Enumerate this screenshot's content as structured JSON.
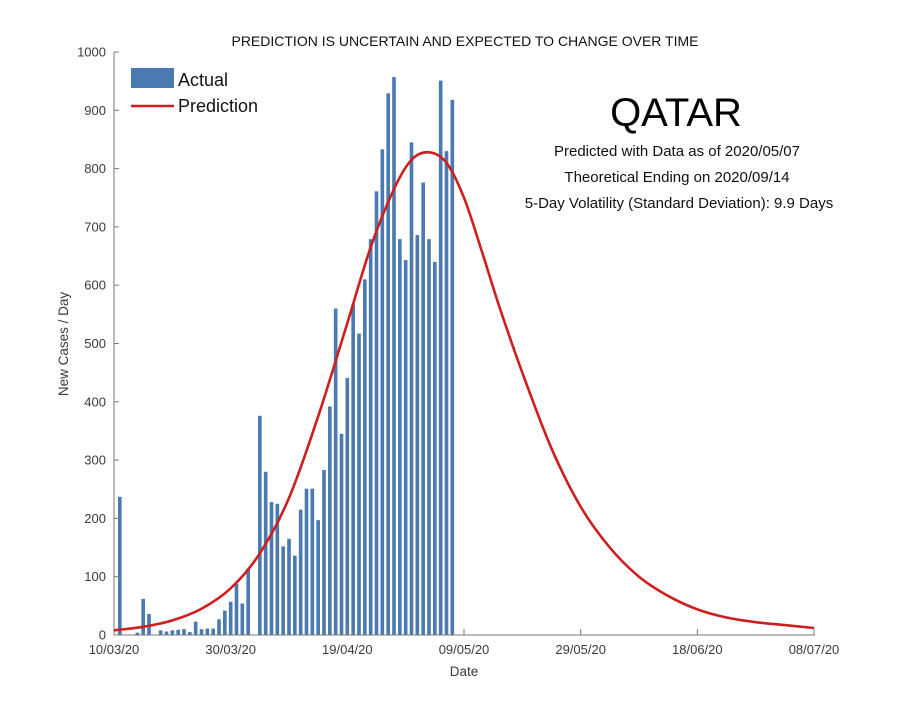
{
  "chart_data": {
    "type": "bar",
    "title": "PREDICTION IS UNCERTAIN AND EXPECTED TO CHANGE OVER TIME",
    "xlabel": "Date",
    "ylabel": "New Cases / Day",
    "ylim": [
      0,
      1000
    ],
    "xlim_days": [
      0,
      120
    ],
    "x_start_date": "10/03/20",
    "grid": false,
    "legend_position": "top-left",
    "x_ticks": [
      {
        "day": 0,
        "label": "10/03/20"
      },
      {
        "day": 20,
        "label": "30/03/20"
      },
      {
        "day": 40,
        "label": "19/04/20"
      },
      {
        "day": 60,
        "label": "09/05/20"
      },
      {
        "day": 80,
        "label": "29/05/20"
      },
      {
        "day": 100,
        "label": "18/06/20"
      },
      {
        "day": 120,
        "label": "08/07/20"
      }
    ],
    "y_ticks": [
      0,
      100,
      200,
      300,
      400,
      500,
      600,
      700,
      800,
      900,
      1000
    ],
    "series": [
      {
        "name": "Actual",
        "type": "bar",
        "color": "#4a7ab0",
        "day_offset": 1,
        "values": [
          237,
          0,
          0,
          4,
          62,
          36,
          0,
          8,
          6,
          8,
          9,
          10,
          5,
          23,
          10,
          11,
          11,
          27,
          42,
          57,
          88,
          54,
          114,
          0,
          376,
          280,
          228,
          225,
          152,
          165,
          136,
          215,
          251,
          251,
          197,
          283,
          392,
          560,
          345,
          441,
          567,
          517,
          610,
          679,
          761,
          833,
          929,
          957,
          679,
          643,
          845,
          686,
          776,
          679,
          640,
          951,
          830,
          918
        ]
      },
      {
        "name": "Prediction",
        "type": "line",
        "color": "#cc1f1f",
        "points": [
          [
            0,
            8
          ],
          [
            5,
            14
          ],
          [
            10,
            25
          ],
          [
            15,
            45
          ],
          [
            20,
            80
          ],
          [
            25,
            140
          ],
          [
            30,
            235
          ],
          [
            35,
            375
          ],
          [
            40,
            535
          ],
          [
            44,
            665
          ],
          [
            48,
            765
          ],
          [
            51,
            815
          ],
          [
            54,
            828
          ],
          [
            57,
            810
          ],
          [
            60,
            750
          ],
          [
            63,
            660
          ],
          [
            66,
            565
          ],
          [
            70,
            450
          ],
          [
            75,
            320
          ],
          [
            80,
            220
          ],
          [
            85,
            150
          ],
          [
            90,
            100
          ],
          [
            95,
            67
          ],
          [
            100,
            44
          ],
          [
            105,
            30
          ],
          [
            110,
            22
          ],
          [
            115,
            17
          ],
          [
            120,
            12
          ]
        ]
      }
    ]
  },
  "annotations": {
    "country": "QATAR",
    "lines": [
      "Predicted with Data as of 2020/05/07",
      "Theoretical Ending on 2020/09/14",
      "5-Day Volatility (Standard Deviation): 9.9 Days"
    ]
  },
  "legend": [
    {
      "label": "Actual",
      "kind": "bar",
      "color": "#4a7ab0"
    },
    {
      "label": "Prediction",
      "kind": "line",
      "color": "#cc1f1f"
    }
  ]
}
